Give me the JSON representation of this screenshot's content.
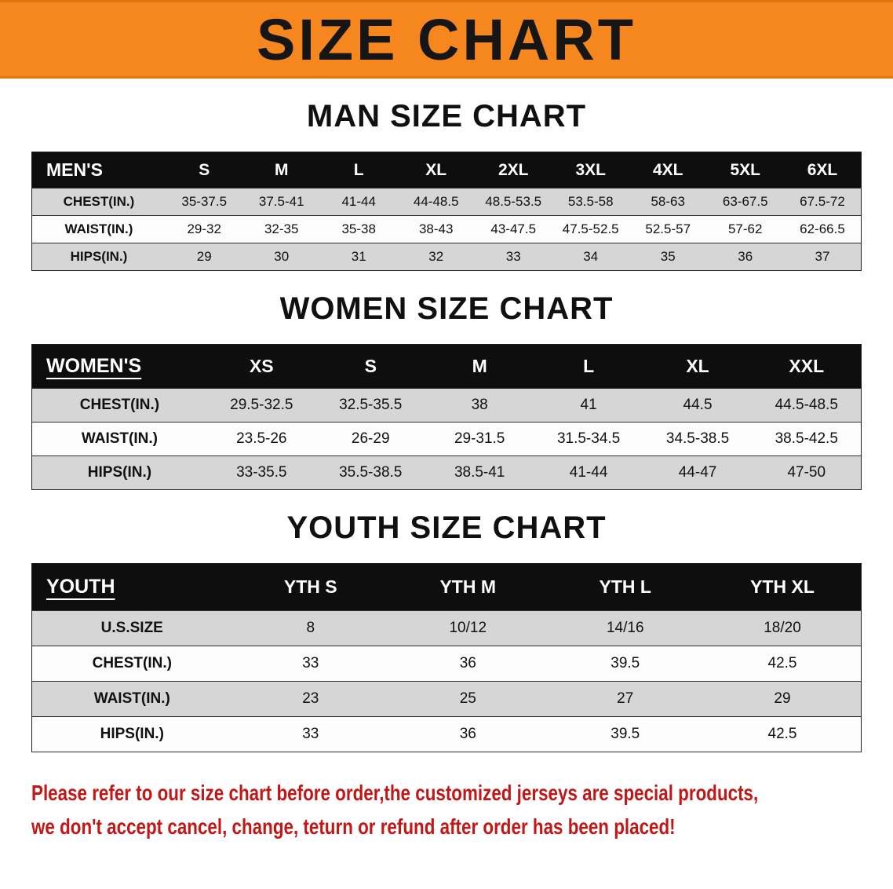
{
  "banner": {
    "title": "SIZE CHART",
    "background_color": "#F6871F",
    "text_color": "#161616"
  },
  "theme": {
    "table_header_bg": "#0E0E0E",
    "table_header_text": "#FFFFFF",
    "stripe_row_bg": "#D6D6D6",
    "disclaimer_color": "#C21717"
  },
  "sections": {
    "men": {
      "heading": "MAN SIZE CHART",
      "table": {
        "header": [
          "MEN'S",
          "S",
          "M",
          "L",
          "XL",
          "2XL",
          "3XL",
          "4XL",
          "5XL",
          "6XL"
        ],
        "rows": [
          [
            "CHEST(IN.)",
            "35-37.5",
            "37.5-41",
            "41-44",
            "44-48.5",
            "48.5-53.5",
            "53.5-58",
            "58-63",
            "63-67.5",
            "67.5-72"
          ],
          [
            "WAIST(IN.)",
            "29-32",
            "32-35",
            "35-38",
            "38-43",
            "43-47.5",
            "47.5-52.5",
            "52.5-57",
            "57-62",
            "62-66.5"
          ],
          [
            "HIPS(IN.)",
            "29",
            "30",
            "31",
            "32",
            "33",
            "34",
            "35",
            "36",
            "37"
          ]
        ]
      }
    },
    "women": {
      "heading": "WOMEN SIZE CHART",
      "table": {
        "header": [
          "WOMEN'S",
          "XS",
          "S",
          "M",
          "L",
          "XL",
          "XXL"
        ],
        "rows": [
          [
            "CHEST(IN.)",
            "29.5-32.5",
            "32.5-35.5",
            "38",
            "41",
            "44.5",
            "44.5-48.5"
          ],
          [
            "WAIST(IN.)",
            "23.5-26",
            "26-29",
            "29-31.5",
            "31.5-34.5",
            "34.5-38.5",
            "38.5-42.5"
          ],
          [
            "HIPS(IN.)",
            "33-35.5",
            "35.5-38.5",
            "38.5-41",
            "41-44",
            "44-47",
            "47-50"
          ]
        ]
      }
    },
    "youth": {
      "heading": "YOUTH SIZE CHART",
      "table": {
        "header": [
          "YOUTH",
          "YTH S",
          "YTH M",
          "YTH L",
          "YTH XL"
        ],
        "rows": [
          [
            "U.S.SIZE",
            "8",
            "10/12",
            "14/16",
            "18/20"
          ],
          [
            "CHEST(IN.)",
            "33",
            "36",
            "39.5",
            "42.5"
          ],
          [
            "WAIST(IN.)",
            "23",
            "25",
            "27",
            "29"
          ],
          [
            "HIPS(IN.)",
            "33",
            "36",
            "39.5",
            "42.5"
          ]
        ]
      }
    }
  },
  "disclaimer": {
    "line1": "Please refer to our size chart before order,the customized jerseys are special products,",
    "line2": "we don't accept cancel, change, teturn or refund after order has been placed!"
  }
}
